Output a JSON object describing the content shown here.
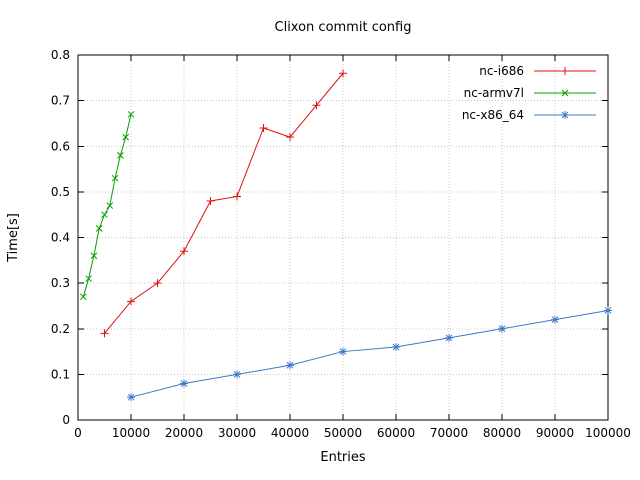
{
  "window": {
    "background": "#ffffff"
  },
  "chart_data": {
    "type": "line",
    "title": "Clixon commit config",
    "xlabel": "Entries",
    "ylabel": "Time[s]",
    "xlim": [
      0,
      100000
    ],
    "ylim": [
      0,
      0.8
    ],
    "xticks": [
      0,
      10000,
      20000,
      30000,
      40000,
      50000,
      60000,
      70000,
      80000,
      90000,
      100000
    ],
    "xtick_labels": [
      "0",
      "10000",
      "20000",
      "30000",
      "40000",
      "50000",
      "60000",
      "70000",
      "80000",
      "90000",
      "100000"
    ],
    "yticks": [
      0,
      0.1,
      0.2,
      0.3,
      0.4,
      0.5,
      0.6,
      0.7,
      0.8
    ],
    "ytick_labels": [
      "0",
      "0.1",
      "0.2",
      "0.3",
      "0.4",
      "0.5",
      "0.6",
      "0.7",
      "0.8"
    ],
    "grid": true,
    "legend_position": "top-right-inside",
    "colors": {
      "grid": "#c8c8c8",
      "axis": "#000000",
      "text": "#000000"
    },
    "series": [
      {
        "name": "nc-i686",
        "color": "#e01010",
        "marker": "plus",
        "x": [
          5000,
          10000,
          15000,
          20000,
          25000,
          30000,
          35000,
          40000,
          45000,
          50000
        ],
        "y": [
          0.19,
          0.26,
          0.3,
          0.37,
          0.48,
          0.49,
          0.64,
          0.62,
          0.69,
          0.76
        ]
      },
      {
        "name": "nc-armv7l",
        "color": "#00a000",
        "marker": "cross",
        "x": [
          1000,
          2000,
          3000,
          4000,
          5000,
          6000,
          7000,
          8000,
          9000,
          10000
        ],
        "y": [
          0.27,
          0.31,
          0.36,
          0.42,
          0.45,
          0.47,
          0.53,
          0.58,
          0.62,
          0.67
        ]
      },
      {
        "name": "nc-x86_64",
        "color": "#3c78c8",
        "marker": "star",
        "x": [
          10000,
          20000,
          30000,
          40000,
          50000,
          60000,
          70000,
          80000,
          90000,
          100000
        ],
        "y": [
          0.05,
          0.08,
          0.1,
          0.12,
          0.15,
          0.16,
          0.18,
          0.2,
          0.22,
          0.24
        ]
      }
    ]
  }
}
